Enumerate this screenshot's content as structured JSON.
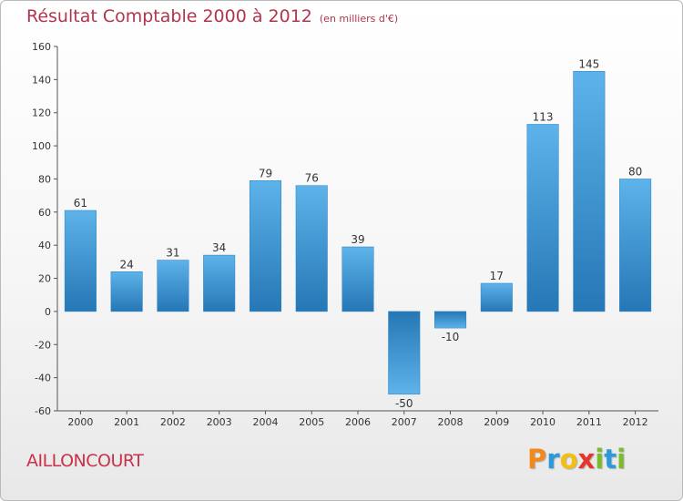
{
  "title": "Résultat Comptable 2000 à 2012",
  "subtitle": "(en milliers d'€)",
  "commune": "AILLONCOURT",
  "logo": {
    "letters": [
      "P",
      "r",
      "o",
      "x",
      "i",
      "t",
      "i"
    ],
    "colors": [
      "#f08a1c",
      "#2a9ad8",
      "#f2c012",
      "#e8352b",
      "#7cbb2a",
      "#2a9ad8",
      "#7cbb2a"
    ]
  },
  "chart_data": {
    "type": "bar",
    "categories": [
      "2000",
      "2001",
      "2002",
      "2003",
      "2004",
      "2005",
      "2006",
      "2007",
      "2008",
      "2009",
      "2010",
      "2011",
      "2012"
    ],
    "values": [
      61,
      24,
      31,
      34,
      79,
      76,
      39,
      -50,
      -10,
      17,
      113,
      145,
      80
    ],
    "value_labels": [
      "61",
      "24",
      "31",
      "34",
      "79",
      "76",
      "39",
      "-50",
      "-10",
      "17",
      "113",
      "145",
      "80"
    ],
    "ylim": [
      -60,
      160
    ],
    "yticks": [
      -60,
      -40,
      -20,
      0,
      20,
      40,
      60,
      80,
      100,
      120,
      140,
      160
    ],
    "grid": false,
    "bar_color": "#3d9ad8"
  }
}
